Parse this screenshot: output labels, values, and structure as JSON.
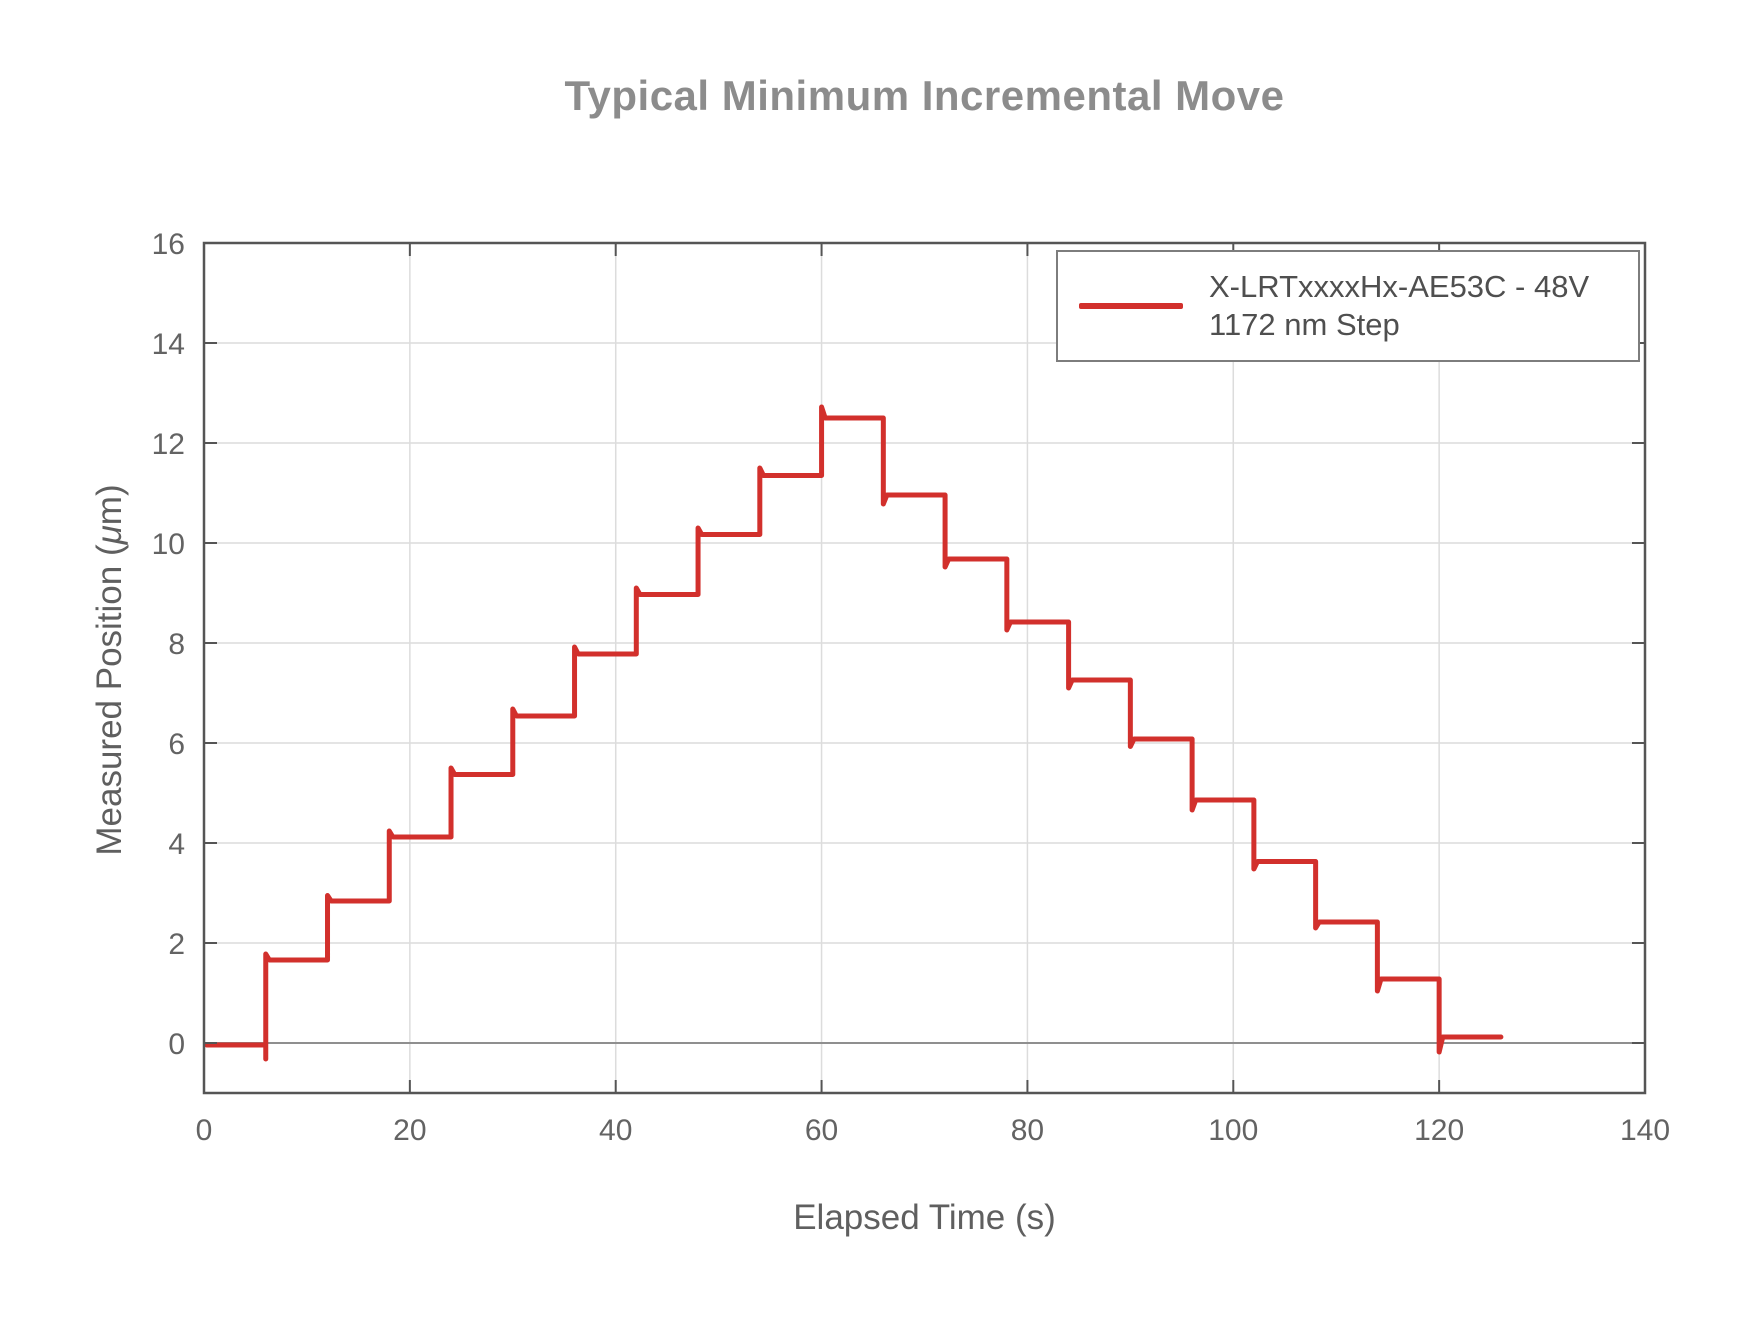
{
  "page": {
    "background": "#ffffff"
  },
  "chart_data": {
    "type": "line",
    "subtype": "staircase-step-response",
    "title": "Typical Minimum Incremental Move",
    "xlabel": "Elapsed Time (s)",
    "ylabel": "Measured Position (μm)",
    "ylabel_parts": {
      "prefix": "Measured Position (",
      "mu": "μ",
      "suffix": "m)"
    },
    "xlim": [
      0,
      140
    ],
    "ylim": [
      -1,
      16
    ],
    "xticks": [
      0,
      20,
      40,
      60,
      80,
      100,
      120,
      140
    ],
    "yticks": [
      0,
      2,
      4,
      6,
      8,
      10,
      12,
      14,
      16
    ],
    "grid": true,
    "zero_line": true,
    "legend": {
      "position": "top-right",
      "label_line1": "X-LRTxxxxHx-AE53C - 48V",
      "label_line2": "1172 nm Step"
    },
    "style": {
      "series_color": "#d2302c",
      "grid_color": "#dcdcdc",
      "zero_line_color": "#8f8f8f",
      "axis_color": "#555555",
      "tick_label_color": "#636363",
      "title_color": "#8c8c8c",
      "axis_label_color": "#5f5f5f",
      "legend_border_color": "#7d7d7d",
      "background": "#ffffff"
    },
    "series": [
      {
        "name": "X-LRTxxxxHx-AE53C - 48V 1172 nm Step",
        "color": "#d2302c",
        "line_width": 5,
        "step_size_nm": 1172,
        "dwell_s": 6,
        "start_time_s": 0,
        "end_time_s": 126,
        "steps": [
          {
            "t": 0,
            "v": -0.04
          },
          {
            "t": 6,
            "v": 1.66,
            "spike": 1.78,
            "predip": -0.32
          },
          {
            "t": 12,
            "v": 2.84,
            "spike": 2.95
          },
          {
            "t": 18,
            "v": 4.12,
            "spike": 4.24
          },
          {
            "t": 24,
            "v": 5.37,
            "spike": 5.5
          },
          {
            "t": 30,
            "v": 6.54,
            "spike": 6.68
          },
          {
            "t": 36,
            "v": 7.78,
            "spike": 7.92
          },
          {
            "t": 42,
            "v": 8.97,
            "spike": 9.1
          },
          {
            "t": 48,
            "v": 10.17,
            "spike": 10.3
          },
          {
            "t": 54,
            "v": 11.35,
            "spike": 11.5
          },
          {
            "t": 60,
            "v": 12.5,
            "spike": 12.72
          },
          {
            "t": 66,
            "v": 10.96,
            "spike": 10.78
          },
          {
            "t": 72,
            "v": 9.68,
            "spike": 9.52
          },
          {
            "t": 78,
            "v": 8.42,
            "spike": 8.26
          },
          {
            "t": 84,
            "v": 7.26,
            "spike": 7.1
          },
          {
            "t": 90,
            "v": 6.08,
            "spike": 5.93
          },
          {
            "t": 96,
            "v": 4.86,
            "spike": 4.66
          },
          {
            "t": 102,
            "v": 3.63,
            "spike": 3.48
          },
          {
            "t": 108,
            "v": 2.42,
            "spike": 2.3
          },
          {
            "t": 114,
            "v": 1.28,
            "spike": 1.04
          },
          {
            "t": 120,
            "v": 0.12,
            "spike": -0.18
          }
        ]
      }
    ]
  }
}
